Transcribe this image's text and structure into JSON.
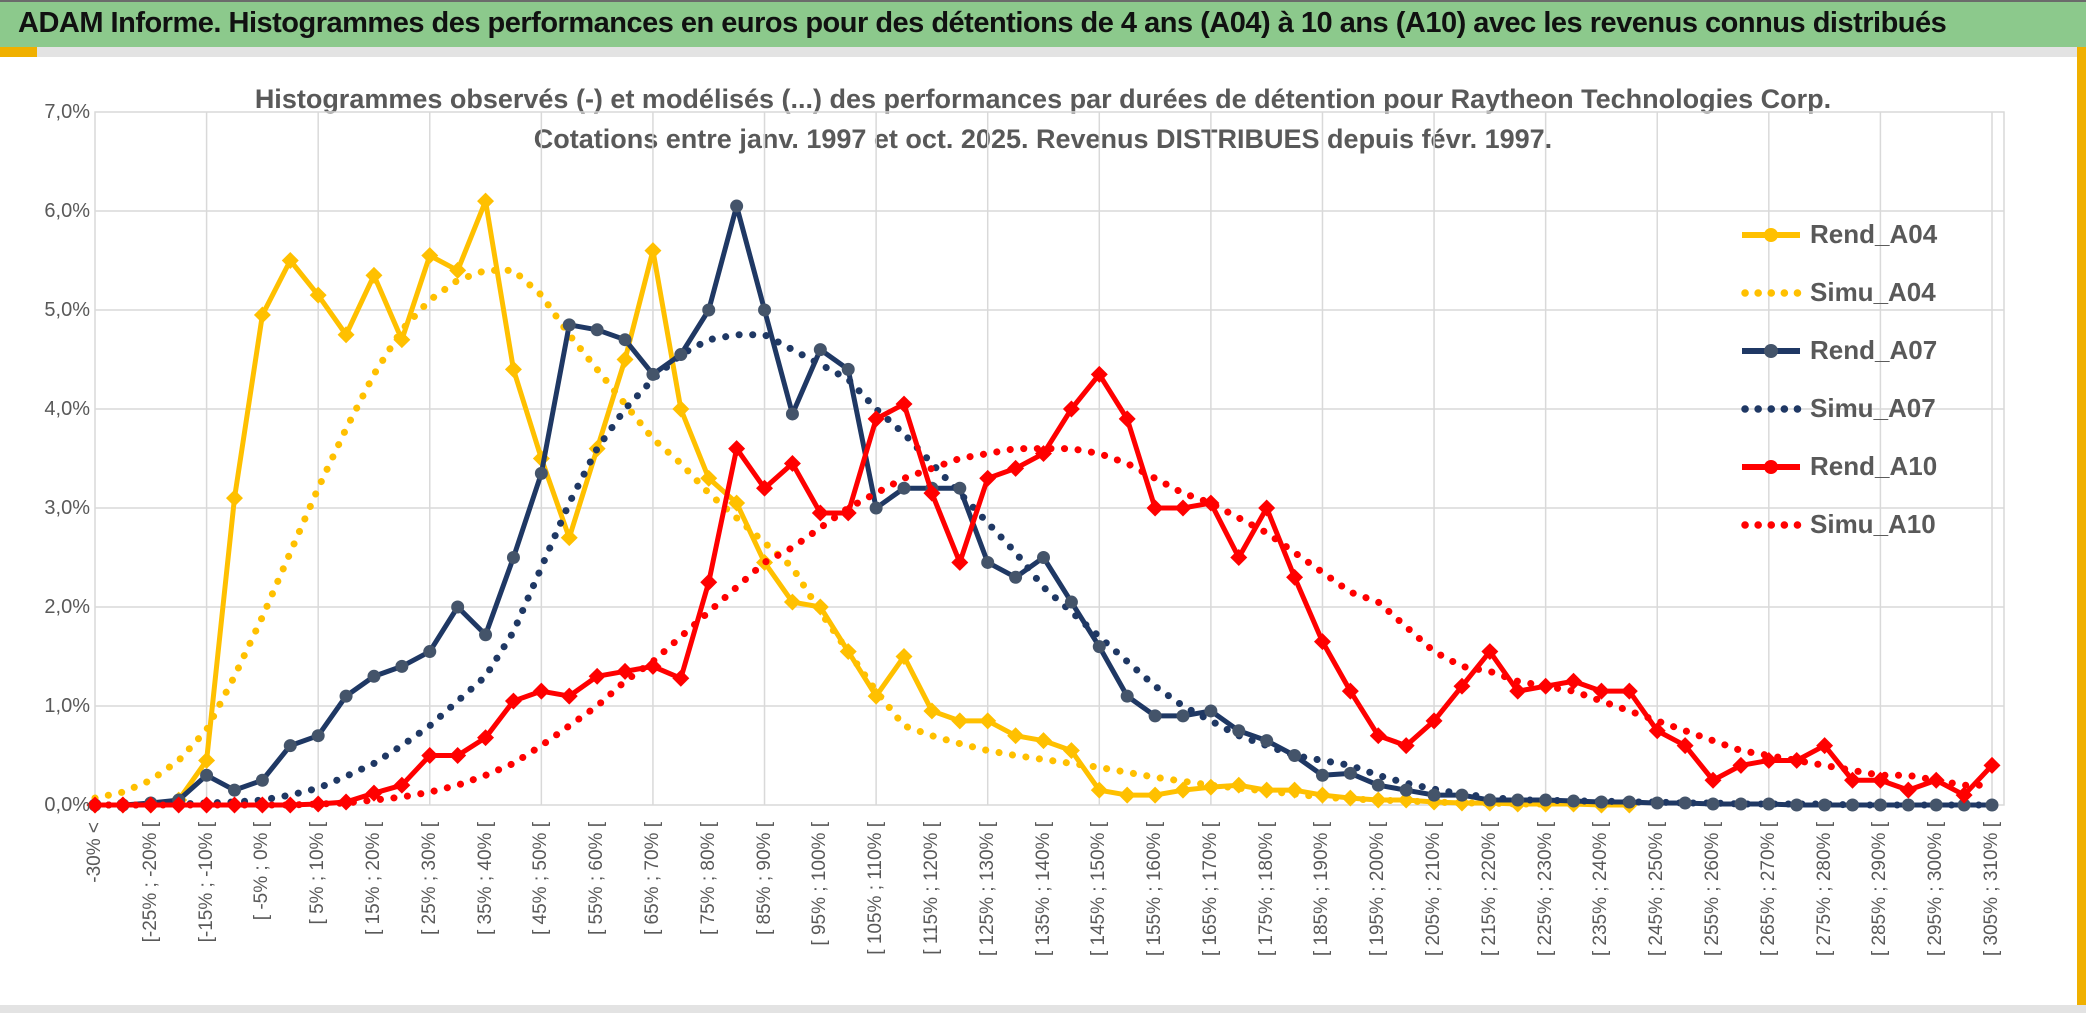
{
  "header": {
    "title": "ADAM Informe. Histogrammes des performances en euros pour des détentions de 4 ans (A04) à 10 ans (A10) avec les revenus connus distribués"
  },
  "colors": {
    "header_green": "#8cc98c",
    "accent_orange": "#f0b000",
    "strip_gray": "#e3e3e3",
    "grid": "#d9d9d9",
    "text_gray": "#595959",
    "gold": "#FFC000",
    "navy": "#1F3864",
    "navy_marker": "#44546A",
    "red": "#FF0000"
  },
  "chart_data": {
    "type": "line",
    "title_line1": "Histogrammes observés (-) et modélisés (...) des performances par durées de détention pour Raytheon Technologies Corp.",
    "title_line2": "Cotations entre janv. 1997 et oct. 2025. Revenus DISTRIBUES depuis févr. 1997.",
    "grid": true,
    "legend_position": "right",
    "y_axis": {
      "min": 0,
      "max": 7,
      "tick_step": 1,
      "tick_labels": [
        "0,0%",
        "1,0%",
        "2,0%",
        "3,0%",
        "4,0%",
        "5,0%",
        "6,0%",
        "7,0%"
      ]
    },
    "x_axis": {
      "note": "69 bins of 5% width; a visible label on every other bin starting at bin 0",
      "n_bins": 69,
      "labels": [
        "-30% <",
        "[-25% ; -20% [",
        "[-15% ; -10% [",
        "[ -5% ; 0% [",
        "[ 5% ; 10% [",
        "[ 15% ; 20% [",
        "[ 25% ; 30% [",
        "[ 35% ; 40% [",
        "[ 45% ; 50% [",
        "[ 55% ; 60% [",
        "[ 65% ; 70% [",
        "[ 75% ; 80% [",
        "[ 85% ; 90% [",
        "[ 95% ; 100% [",
        "[ 105% ; 110% [",
        "[ 115% ; 120% [",
        "[ 125% ; 130% [",
        "[ 135% ; 140% [",
        "[ 145% ; 150% [",
        "[ 155% ; 160% [",
        "[ 165% ; 170% [",
        "[ 175% ; 180% [",
        "[ 185% ; 190% [",
        "[ 195% ; 200% [",
        "[ 205% ; 210% [",
        "[ 215% ; 220% [",
        "[ 225% ; 230% [",
        "[ 235% ; 240% [",
        "[ 245% ; 250% [",
        "[ 255% ; 260% [",
        "[ 265% ; 270% [",
        "[ 275% ; 280% [",
        "[ 285% ; 290% [",
        "[ 295% ; 300% [",
        "[ 305% ; 310% ["
      ]
    },
    "legend": [
      {
        "label": "Rend_A04",
        "series": "Rend_A04"
      },
      {
        "label": "Simu_A04",
        "series": "Simu_A04"
      },
      {
        "label": "Rend_A07",
        "series": "Rend_A07"
      },
      {
        "label": "Simu_A07",
        "series": "Simu_A07"
      },
      {
        "label": "Rend_A10",
        "series": "Rend_A10"
      },
      {
        "label": "Simu_A10",
        "series": "Simu_A10"
      }
    ],
    "series": [
      {
        "name": "Simu_A04",
        "color": "#FFC000",
        "style": "dotted",
        "values": [
          0.07,
          0.13,
          0.25,
          0.45,
          0.76,
          1.3,
          1.9,
          2.55,
          3.2,
          3.8,
          4.35,
          4.8,
          5.1,
          5.3,
          5.4,
          5.4,
          5.15,
          4.75,
          4.4,
          4.05,
          3.7,
          3.45,
          3.15,
          2.9,
          2.65,
          2.4,
          1.95,
          1.55,
          1.15,
          0.8,
          0.7,
          0.62,
          0.55,
          0.5,
          0.46,
          0.42,
          0.38,
          0.33,
          0.28,
          0.24,
          0.2,
          0.17,
          0.14,
          0.11,
          0.08,
          0.06,
          0.05,
          0.04,
          0.03,
          0.02,
          0.02,
          0.01,
          0.01,
          null,
          null,
          null,
          null,
          null,
          null,
          null,
          null,
          null,
          null,
          null,
          null,
          null,
          null,
          null,
          null
        ]
      },
      {
        "name": "Rend_A04",
        "color": "#FFC000",
        "style": "solid",
        "marker": "diamond",
        "values": [
          0,
          0,
          0,
          0.05,
          0.45,
          3.1,
          4.95,
          5.5,
          5.15,
          4.75,
          5.35,
          4.7,
          5.55,
          5.4,
          6.1,
          4.4,
          3.5,
          2.7,
          3.6,
          4.5,
          5.6,
          4.0,
          3.3,
          3.05,
          2.45,
          2.05,
          2.0,
          1.55,
          1.1,
          1.5,
          0.95,
          0.85,
          0.85,
          0.7,
          0.65,
          0.55,
          0.15,
          0.1,
          0.1,
          0.15,
          0.18,
          0.2,
          0.15,
          0.15,
          0.1,
          0.07,
          0.05,
          0.05,
          0.03,
          0.02,
          0.02,
          0.01,
          0.01,
          0.01,
          0,
          0,
          null,
          null,
          null,
          null,
          null,
          null,
          null,
          null,
          null,
          null,
          null,
          null,
          null
        ]
      },
      {
        "name": "Simu_A07",
        "color": "#1F3864",
        "style": "dotted",
        "values": [
          0,
          0,
          0,
          0.01,
          0.02,
          0.03,
          0.05,
          0.1,
          0.17,
          0.29,
          0.42,
          0.6,
          0.8,
          1.05,
          1.3,
          1.75,
          2.4,
          3.05,
          3.6,
          4.0,
          4.3,
          4.55,
          4.7,
          4.75,
          4.75,
          4.6,
          4.45,
          4.3,
          4.0,
          3.75,
          3.45,
          3.15,
          2.85,
          2.55,
          2.2,
          1.95,
          1.7,
          1.45,
          1.2,
          1.0,
          0.85,
          0.7,
          0.6,
          0.5,
          0.45,
          0.4,
          0.3,
          0.22,
          0.16,
          0.11,
          0.08,
          0.05,
          0.05,
          0.04,
          0.04,
          0.03,
          0.03,
          0.02,
          0.02,
          0.01,
          0.01,
          0.01,
          0.01,
          0,
          0,
          0,
          0,
          0,
          0
        ]
      },
      {
        "name": "Rend_A07",
        "color": "#1F3864",
        "style": "solid",
        "marker": "circle",
        "marker_color": "#44546A",
        "values": [
          0,
          0,
          0.02,
          0.05,
          0.3,
          0.15,
          0.25,
          0.6,
          0.7,
          1.1,
          1.3,
          1.4,
          1.55,
          2.0,
          1.72,
          2.5,
          3.35,
          4.85,
          4.8,
          4.7,
          4.35,
          4.55,
          5.0,
          6.05,
          5.0,
          3.95,
          4.6,
          4.4,
          3.0,
          3.2,
          3.2,
          3.2,
          2.45,
          2.3,
          2.5,
          2.05,
          1.6,
          1.1,
          0.9,
          0.9,
          0.95,
          0.75,
          0.65,
          0.5,
          0.3,
          0.32,
          0.2,
          0.15,
          0.1,
          0.1,
          0.05,
          0.05,
          0.05,
          0.04,
          0.03,
          0.03,
          0.02,
          0.02,
          0.01,
          0.01,
          0.01,
          0,
          0,
          0,
          0,
          0,
          0,
          0,
          0
        ]
      },
      {
        "name": "Simu_A10",
        "color": "#FF0000",
        "style": "dotted",
        "values": [
          0,
          0,
          0,
          0,
          0,
          0,
          0,
          0,
          0.01,
          0.02,
          0.05,
          0.08,
          0.13,
          0.2,
          0.3,
          0.42,
          0.6,
          0.8,
          1.0,
          1.25,
          1.45,
          1.7,
          1.95,
          2.2,
          2.45,
          2.6,
          2.8,
          3.0,
          3.15,
          3.3,
          3.4,
          3.5,
          3.55,
          3.6,
          3.6,
          3.6,
          3.55,
          3.45,
          3.3,
          3.15,
          3.05,
          2.9,
          2.75,
          2.55,
          2.35,
          2.15,
          2.05,
          1.8,
          1.55,
          1.4,
          1.35,
          1.25,
          1.2,
          1.15,
          1.05,
          0.95,
          0.85,
          0.75,
          0.65,
          0.55,
          0.5,
          0.45,
          0.4,
          0.35,
          0.3,
          0.3,
          0.25,
          0.2,
          0.2
        ]
      },
      {
        "name": "Rend_A10",
        "color": "#FF0000",
        "style": "solid",
        "marker": "diamond",
        "values": [
          0,
          0,
          0,
          0,
          0,
          0,
          0,
          0,
          0.01,
          0.03,
          0.12,
          0.2,
          0.5,
          0.5,
          0.68,
          1.05,
          1.15,
          1.1,
          1.3,
          1.35,
          1.4,
          1.28,
          2.25,
          3.6,
          3.2,
          3.45,
          2.95,
          2.95,
          3.9,
          4.05,
          3.15,
          2.45,
          3.3,
          3.4,
          3.55,
          4.0,
          4.35,
          3.9,
          3.0,
          3.0,
          3.05,
          2.5,
          3.0,
          2.3,
          1.65,
          1.15,
          0.7,
          0.6,
          0.85,
          1.2,
          1.55,
          1.15,
          1.2,
          1.25,
          1.15,
          1.15,
          0.75,
          0.6,
          0.25,
          0.4,
          0.45,
          0.45,
          0.6,
          0.25,
          0.25,
          0.15,
          0.25,
          0.1,
          0.4
        ]
      }
    ],
    "draw_order": [
      "Simu_A04",
      "Rend_A04",
      "Simu_A07",
      "Rend_A07",
      "Simu_A10",
      "Rend_A10"
    ]
  }
}
